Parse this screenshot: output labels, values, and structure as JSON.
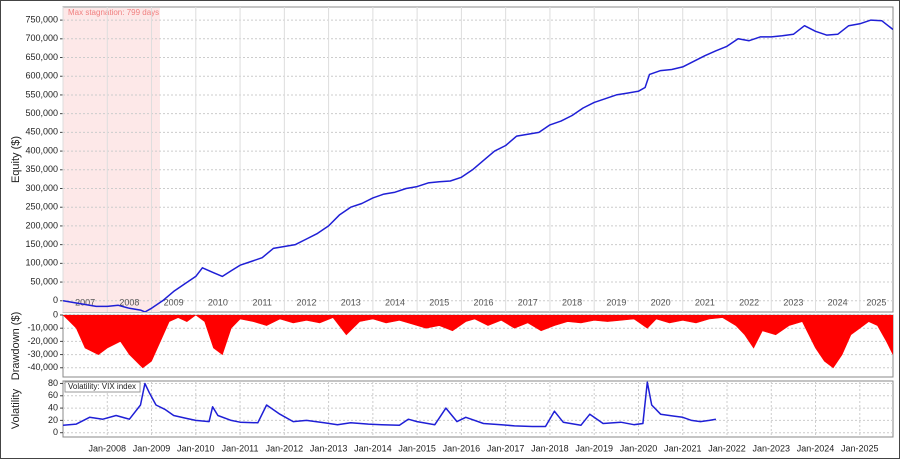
{
  "chart_data": [
    {
      "type": "line",
      "ylabel": "Equity ($)",
      "color": "#1f1fd6",
      "grid": true,
      "annotation": {
        "text": "Max stagnation: 799 days",
        "x_span": [
          2007,
          2009.19
        ],
        "color": "#fde8e8"
      },
      "xlim": [
        2007,
        2025.75
      ],
      "xticks": [
        2007,
        2008,
        2009,
        2010,
        2011,
        2012,
        2013,
        2014,
        2015,
        2016,
        2017,
        2018,
        2019,
        2020,
        2021,
        2022,
        2023,
        2024,
        2025
      ],
      "ylim": [
        -30000,
        785000
      ],
      "yticks": [
        0,
        {
          "value": 50000,
          "label": "50,000"
        },
        {
          "value": 100000,
          "label": "100,000"
        },
        {
          "value": 150000,
          "label": "150,000"
        },
        {
          "value": 200000,
          "label": "200,000"
        },
        {
          "value": 250000,
          "label": "250,000"
        },
        {
          "value": 300000,
          "label": "300,000"
        },
        {
          "value": 350000,
          "label": "350,000"
        },
        {
          "value": 400000,
          "label": "400,000"
        },
        {
          "value": 450000,
          "label": "450,000"
        },
        {
          "value": 500000,
          "label": "500,000"
        },
        {
          "value": 550000,
          "label": "550,000"
        },
        {
          "value": 600000,
          "label": "600,000"
        },
        {
          "value": 650000,
          "label": "650,000"
        },
        {
          "value": 700000,
          "label": "700,000"
        },
        {
          "value": 750000,
          "label": "750,000"
        }
      ],
      "x": [
        2007,
        2007.25,
        2007.5,
        2007.75,
        2008,
        2008.25,
        2008.5,
        2008.75,
        2008.85,
        2009,
        2009.25,
        2009.5,
        2009.75,
        2010,
        2010.15,
        2010.4,
        2010.6,
        2010.8,
        2011,
        2011.25,
        2011.5,
        2011.75,
        2012,
        2012.25,
        2012.5,
        2012.75,
        2013,
        2013.25,
        2013.5,
        2013.75,
        2014,
        2014.25,
        2014.5,
        2014.75,
        2015,
        2015.25,
        2015.5,
        2015.75,
        2016,
        2016.25,
        2016.5,
        2016.75,
        2017,
        2017.25,
        2017.5,
        2017.75,
        2018,
        2018.25,
        2018.5,
        2018.75,
        2019,
        2019.25,
        2019.5,
        2019.75,
        2020,
        2020.15,
        2020.25,
        2020.5,
        2020.75,
        2021,
        2021.25,
        2021.5,
        2021.75,
        2022,
        2022.25,
        2022.5,
        2022.75,
        2023,
        2023.25,
        2023.5,
        2023.75,
        2024,
        2024.25,
        2024.5,
        2024.75,
        2025,
        2025.25,
        2025.5,
        2025.75
      ],
      "values": [
        0,
        -5000,
        -10000,
        -15000,
        -15000,
        -12000,
        -20000,
        -25000,
        -30000,
        -20000,
        0,
        25000,
        45000,
        65000,
        88000,
        75000,
        65000,
        80000,
        95000,
        105000,
        115000,
        140000,
        145000,
        150000,
        165000,
        180000,
        200000,
        230000,
        250000,
        260000,
        275000,
        285000,
        290000,
        300000,
        305000,
        315000,
        318000,
        320000,
        330000,
        350000,
        375000,
        400000,
        415000,
        440000,
        445000,
        450000,
        470000,
        480000,
        495000,
        515000,
        530000,
        540000,
        550000,
        555000,
        560000,
        570000,
        605000,
        615000,
        618000,
        625000,
        640000,
        655000,
        668000,
        680000,
        700000,
        695000,
        705000,
        705000,
        708000,
        712000,
        735000,
        720000,
        710000,
        712000,
        735000,
        740000,
        750000,
        748000,
        725000
      ]
    },
    {
      "type": "area",
      "ylabel": "Drawdown ($)",
      "color": "#ff0000",
      "grid": true,
      "xlim": [
        2007,
        2025.75
      ],
      "ylim": [
        -47000,
        0
      ],
      "yticks": [
        0,
        {
          "value": -10000,
          "label": "-10,000"
        },
        {
          "value": -20000,
          "label": "-20,000"
        },
        {
          "value": -30000,
          "label": "-30,000"
        },
        {
          "value": -40000,
          "label": "-40,000"
        }
      ],
      "x": [
        2007,
        2007.3,
        2007.5,
        2007.8,
        2008,
        2008.3,
        2008.5,
        2008.8,
        2009,
        2009.2,
        2009.4,
        2009.6,
        2009.8,
        2010,
        2010.2,
        2010.4,
        2010.6,
        2010.8,
        2011,
        2011.3,
        2011.6,
        2011.9,
        2012.2,
        2012.5,
        2012.8,
        2013.1,
        2013.4,
        2013.7,
        2014,
        2014.3,
        2014.6,
        2014.9,
        2015.2,
        2015.5,
        2015.8,
        2016.1,
        2016.3,
        2016.6,
        2016.9,
        2017.2,
        2017.5,
        2017.8,
        2018.1,
        2018.4,
        2018.7,
        2019,
        2019.3,
        2019.6,
        2019.9,
        2020.2,
        2020.4,
        2020.7,
        2021,
        2021.3,
        2021.6,
        2021.9,
        2022.2,
        2022.4,
        2022.6,
        2022.8,
        2023.1,
        2023.4,
        2023.7,
        2024,
        2024.2,
        2024.4,
        2024.6,
        2024.8,
        2025,
        2025.2,
        2025.4,
        2025.6,
        2025.75
      ],
      "values": [
        0,
        -10000,
        -25000,
        -30000,
        -25000,
        -20000,
        -30000,
        -40000,
        -35000,
        -20000,
        -5000,
        -2000,
        -5000,
        0,
        -5000,
        -25000,
        -30000,
        -10000,
        -3000,
        -5000,
        -8000,
        -3000,
        -6000,
        -4000,
        -6000,
        -2000,
        -15000,
        -5000,
        -3000,
        -6000,
        -4000,
        -7000,
        -10000,
        -8000,
        -12000,
        -5000,
        -3000,
        -8000,
        -4000,
        -10000,
        -6000,
        -12000,
        -8000,
        -5000,
        -6000,
        -4000,
        -5000,
        -4000,
        -3000,
        -10000,
        -3000,
        -6000,
        -4000,
        -6000,
        -3000,
        -2000,
        -8000,
        -15000,
        -25000,
        -12000,
        -15000,
        -8000,
        -5000,
        -25000,
        -35000,
        -40000,
        -30000,
        -15000,
        -10000,
        -5000,
        -8000,
        -20000,
        -30000
      ]
    },
    {
      "type": "line",
      "ylabel": "Volatility",
      "grid": true,
      "xlim": [
        2007,
        2025.75
      ],
      "xticks": [
        {
          "value": 2008,
          "label": "Jan-2008"
        },
        {
          "value": 2009,
          "label": "Jan-2009"
        },
        {
          "value": 2010,
          "label": "Jan-2010"
        },
        {
          "value": 2011,
          "label": "Jan-2011"
        },
        {
          "value": 2012,
          "label": "Jan-2012"
        },
        {
          "value": 2013,
          "label": "Jan-2013"
        },
        {
          "value": 2014,
          "label": "Jan-2014"
        },
        {
          "value": 2015,
          "label": "Jan-2015"
        },
        {
          "value": 2016,
          "label": "Jan-2016"
        },
        {
          "value": 2017,
          "label": "Jan-2017"
        },
        {
          "value": 2018,
          "label": "Jan-2018"
        },
        {
          "value": 2019,
          "label": "Jan-2019"
        },
        {
          "value": 2020,
          "label": "Jan-2020"
        },
        {
          "value": 2021,
          "label": "Jan-2021"
        },
        {
          "value": 2022,
          "label": "Jan-2022"
        },
        {
          "value": 2023,
          "label": "Jan-2023"
        },
        {
          "value": 2024,
          "label": "Jan-2024"
        },
        {
          "value": 2025,
          "label": "Jan-2025"
        }
      ],
      "ylim": [
        -7,
        84
      ],
      "yticks": [
        0,
        20,
        40,
        60,
        80
      ],
      "x": [
        2007,
        2007.3,
        2007.6,
        2007.9,
        2008.2,
        2008.5,
        2008.75,
        2008.85,
        2008.95,
        2009.1,
        2009.3,
        2009.5,
        2009.8,
        2010,
        2010.3,
        2010.38,
        2010.5,
        2010.8,
        2011,
        2011.4,
        2011.6,
        2011.7,
        2011.9,
        2012.2,
        2012.5,
        2012.9,
        2013.2,
        2013.5,
        2013.9,
        2014.2,
        2014.6,
        2014.8,
        2015,
        2015.4,
        2015.65,
        2015.9,
        2016.1,
        2016.5,
        2016.9,
        2017.2,
        2017.6,
        2017.9,
        2018.1,
        2018.3,
        2018.7,
        2018.9,
        2019.2,
        2019.6,
        2019.9,
        2020.1,
        2020.2,
        2020.3,
        2020.5,
        2020.8,
        2021,
        2021.2,
        2021.4,
        2021.6,
        2021.75
      ],
      "series": [
        {
          "name": "Volatility: VIX index",
          "color": "#1f1fd6",
          "values": [
            12,
            14,
            25,
            22,
            28,
            22,
            45,
            80,
            65,
            45,
            38,
            28,
            23,
            20,
            18,
            42,
            28,
            20,
            17,
            16,
            45,
            40,
            30,
            18,
            20,
            16,
            13,
            16,
            14,
            13,
            12,
            22,
            18,
            13,
            40,
            18,
            25,
            15,
            13,
            11,
            10,
            10,
            35,
            17,
            12,
            30,
            15,
            17,
            13,
            15,
            82,
            45,
            30,
            27,
            25,
            20,
            18,
            20,
            22
          ]
        }
      ]
    }
  ]
}
